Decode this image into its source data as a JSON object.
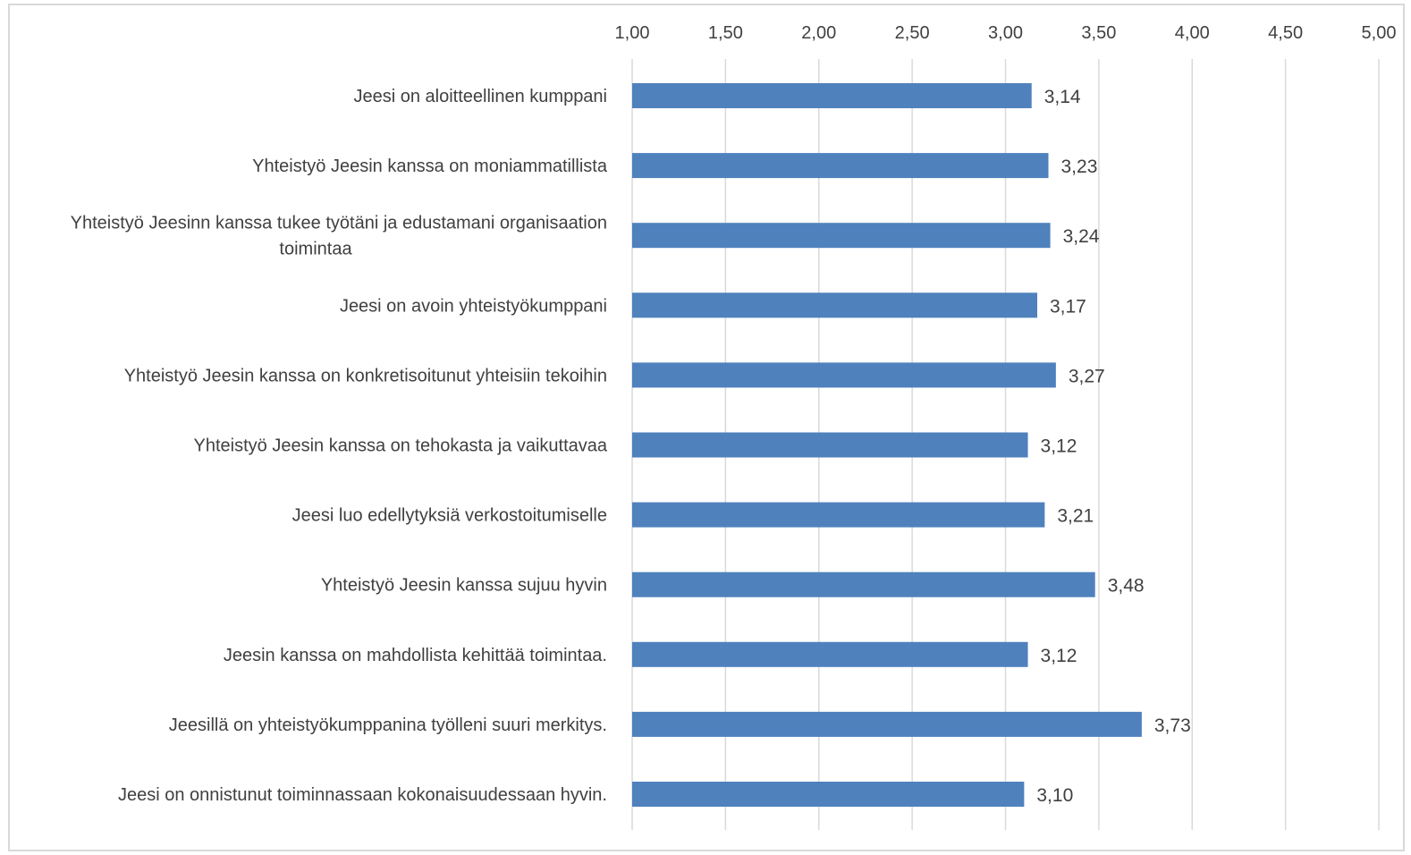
{
  "chart_data": {
    "type": "bar",
    "orientation": "horizontal",
    "categories": [
      "Jeesi on aloitteellinen kumppani",
      "Yhteistyö Jeesin kanssa on moniammatillista",
      "Yhteistyö Jeesinn kanssa tukee työtäni ja edustamani organisaation toimintaa",
      "Jeesi on avoin yhteistyökumppani",
      "Yhteistyö Jeesin kanssa on konkretisoitunut yhteisiin tekoihin",
      "Yhteistyö Jeesin kanssa on tehokasta ja vaikuttavaa",
      "Jeesi luo edellytyksiä verkostoitumiselle",
      "Yhteistyö Jeesin kanssa sujuu hyvin",
      "Jeesin kanssa on mahdollista kehittää toimintaa.",
      "Jeesillä on yhteistyökumppanina työlleni suuri merkitys.",
      "Jeesi on onnistunut toiminnassaan kokonaisuudessaan hyvin."
    ],
    "category_lines": [
      [
        "Jeesi on aloitteellinen kumppani"
      ],
      [
        "Yhteistyö Jeesin kanssa on moniammatillista"
      ],
      [
        "Yhteistyö Jeesinn kanssa tukee työtäni ja edustamani organisaation",
        "toimintaa"
      ],
      [
        "Jeesi on avoin yhteistyökumppani"
      ],
      [
        "Yhteistyö Jeesin kanssa on konkretisoitunut yhteisiin tekoihin"
      ],
      [
        "Yhteistyö Jeesin kanssa on tehokasta ja vaikuttavaa"
      ],
      [
        "Jeesi luo edellytyksiä verkostoitumiselle"
      ],
      [
        "Yhteistyö Jeesin kanssa sujuu hyvin"
      ],
      [
        "Jeesin kanssa on mahdollista kehittää toimintaa."
      ],
      [
        "Jeesillä on yhteistyökumppanina työlleni suuri merkitys."
      ],
      [
        "Jeesi on onnistunut toiminnassaan kokonaisuudessaan hyvin."
      ]
    ],
    "values": [
      3.14,
      3.23,
      3.24,
      3.17,
      3.27,
      3.12,
      3.21,
      3.48,
      3.12,
      3.73,
      3.1
    ],
    "value_labels": [
      "3,14",
      "3,23",
      "3,24",
      "3,17",
      "3,27",
      "3,12",
      "3,21",
      "3,48",
      "3,12",
      "3,73",
      "3,10"
    ],
    "xlim": [
      1.0,
      5.0
    ],
    "xticks": [
      1.0,
      1.5,
      2.0,
      2.5,
      3.0,
      3.5,
      4.0,
      4.5,
      5.0
    ],
    "xtick_labels": [
      "1,00",
      "1,50",
      "2,00",
      "2,50",
      "3,00",
      "3,50",
      "4,00",
      "4,50",
      "5,00"
    ],
    "axis_position": "top",
    "grid": true,
    "legend": false,
    "bar_color": "#4f81bd",
    "grid_color": "#d9d9d9",
    "text_color": "#404040"
  }
}
